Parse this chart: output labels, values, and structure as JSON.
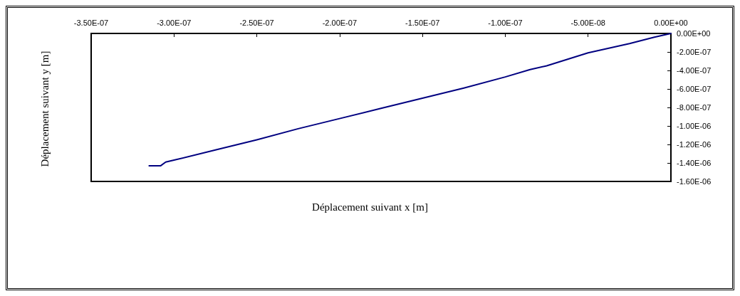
{
  "chart_data": {
    "type": "line",
    "xlabel": "Déplacement suivant x [m]",
    "ylabel": "Déplacement suivant y [m]",
    "series": [
      {
        "color": "#000080",
        "x": [
          -3.15e-07,
          -3.08e-07,
          -3.05e-07,
          -3e-07,
          -2.75e-07,
          -2.5e-07,
          -2.25e-07,
          -2e-07,
          -1.75e-07,
          -1.5e-07,
          -1.25e-07,
          -1e-07,
          -8.5e-08,
          -7.5e-08,
          -5e-08,
          -2.5e-08,
          -1e-08,
          0
        ],
        "values": [
          -1.43e-06,
          -1.43e-06,
          -1.39e-06,
          -1.37e-06,
          -1.26e-06,
          -1.15e-06,
          -1.03e-06,
          -9.2e-07,
          -8.1e-07,
          -7e-07,
          -5.9e-07,
          -4.7e-07,
          -3.9e-07,
          -3.5e-07,
          -2.1e-07,
          -1.1e-07,
          -4e-08,
          0
        ]
      }
    ],
    "xlim": [
      -3.5e-07,
      0
    ],
    "ylim": [
      -1.6e-06,
      0
    ],
    "xticks": [
      {
        "value": -3.5e-07,
        "label": "-3.50E-07"
      },
      {
        "value": -3e-07,
        "label": "-3.00E-07"
      },
      {
        "value": -2.5e-07,
        "label": "-2.50E-07"
      },
      {
        "value": -2e-07,
        "label": "-2.00E-07"
      },
      {
        "value": -1.5e-07,
        "label": "-1.50E-07"
      },
      {
        "value": -1e-07,
        "label": "-1.00E-07"
      },
      {
        "value": -5e-08,
        "label": "-5.00E-08"
      },
      {
        "value": 0,
        "label": "0.00E+00"
      }
    ],
    "yticks": [
      {
        "value": 0,
        "label": "0.00E+00"
      },
      {
        "value": -2e-07,
        "label": "-2.00E-07"
      },
      {
        "value": -4e-07,
        "label": "-4.00E-07"
      },
      {
        "value": -6e-07,
        "label": "-6.00E-07"
      },
      {
        "value": -8e-07,
        "label": "-8.00E-07"
      },
      {
        "value": -1e-06,
        "label": "-1.00E-06"
      },
      {
        "value": -1.2e-06,
        "label": "-1.20E-06"
      },
      {
        "value": -1.4e-06,
        "label": "-1.40E-06"
      },
      {
        "value": -1.6e-06,
        "label": "-1.60E-06"
      }
    ],
    "grid": false,
    "marker": "none",
    "line_style": "solid"
  }
}
